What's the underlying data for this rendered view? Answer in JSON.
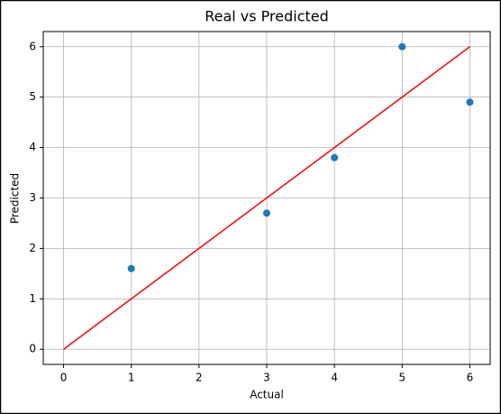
{
  "chart_data": {
    "type": "scatter",
    "title": "Real vs Predicted",
    "x_label": "Actual",
    "y_label": "Predicted",
    "series": [
      {
        "type": "scatter",
        "color": "#1f77b4",
        "x": [
          1,
          3,
          4,
          5,
          6
        ],
        "values": [
          1.6,
          2.7,
          3.8,
          6.0,
          4.9
        ]
      },
      {
        "type": "line",
        "color": "#ff0000",
        "x": [
          0,
          6
        ],
        "values": [
          0,
          6
        ]
      }
    ],
    "xlim": [
      -0.3,
      6.3
    ],
    "ylim": [
      -0.3,
      6.3
    ],
    "xticks": [
      0,
      1,
      2,
      3,
      4,
      5,
      6
    ],
    "yticks": [
      0,
      1,
      2,
      3,
      4,
      5,
      6
    ],
    "grid": true
  }
}
